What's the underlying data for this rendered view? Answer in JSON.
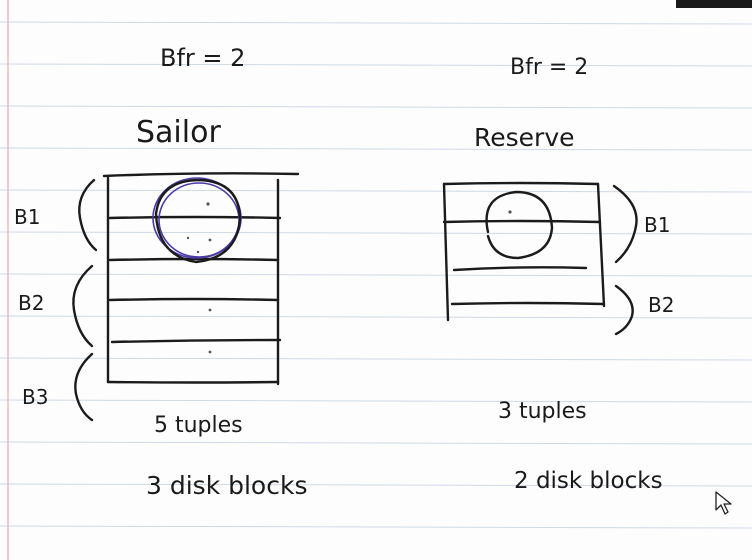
{
  "colors": {
    "paper": "#fdfdfd",
    "ink": "#1a1a1a",
    "rule_line": "#cfd9e6",
    "margin_line": "#e8a9b4",
    "highlight_circle": "#4a3aa8"
  },
  "left": {
    "bfr": "Bfr = 2",
    "title": "Sailor",
    "block_labels": [
      "B1",
      "B2",
      "B3"
    ],
    "tuples": "5 tuples",
    "blocks": "3 disk blocks"
  },
  "right": {
    "bfr": "Bfr = 2",
    "title": "Reserve",
    "block_labels": [
      "B1",
      "B2"
    ],
    "tuples": "3 tuples",
    "blocks": "2 disk blocks"
  },
  "icons": {
    "cursor": "mouse-pointer-icon"
  }
}
